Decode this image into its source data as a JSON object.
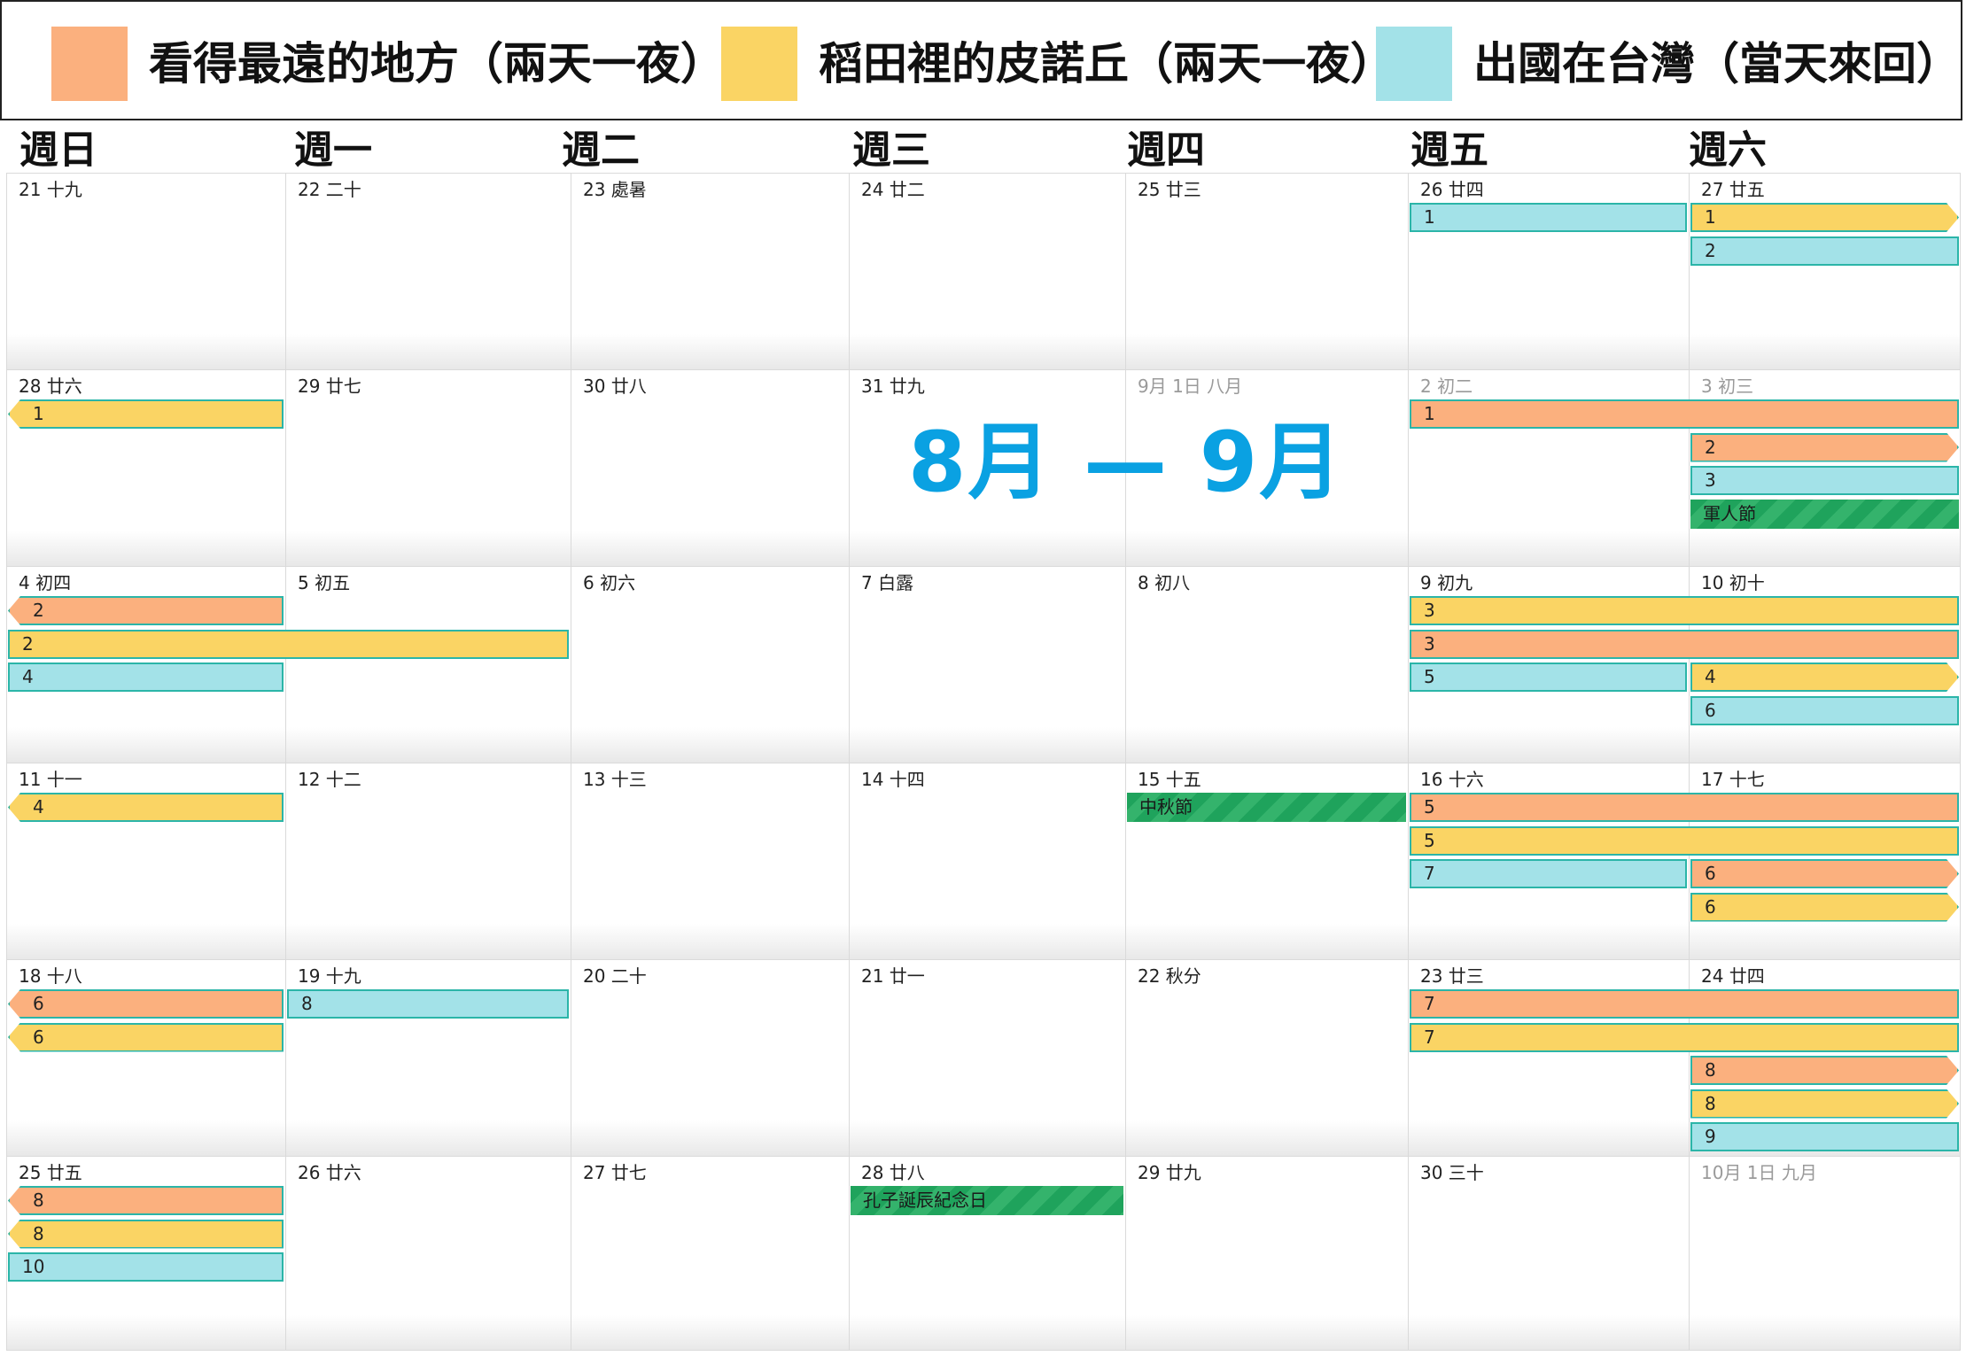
{
  "colors": {
    "orange": "#fbb07e",
    "yellow": "#fad464",
    "cyan": "#a3e2e8",
    "holiday": "#1fa35c",
    "title": "#0aa1e2"
  },
  "legend": [
    {
      "label": "看得最遠的地方（兩天一夜）",
      "color": "#fbb07e"
    },
    {
      "label": "稻田裡的皮諾丘（兩天一夜）",
      "color": "#fad464"
    },
    {
      "label": "出國在台灣（當天來回）",
      "color": "#a3e2e8"
    }
  ],
  "weekdays": [
    "週日",
    "週一",
    "週二",
    "週三",
    "週四",
    "週五",
    "週六"
  ],
  "month_title": "8月 — 9月",
  "days": [
    [
      "21 十九",
      "22 二十",
      "23 處暑",
      "24 廿二",
      "25 廿三",
      "26 廿四",
      "27 廿五"
    ],
    [
      "28 廿六",
      "29 廿七",
      "30 廿八",
      "31 廿九",
      "9月 1日 八月",
      "2 初二",
      "3 初三"
    ],
    [
      "4 初四",
      "5 初五",
      "6 初六",
      "7 白露",
      "8 初八",
      "9 初九",
      "10 初十"
    ],
    [
      "11 十一",
      "12 十二",
      "13 十三",
      "14 十四",
      "15 十五",
      "16 十六",
      "17 十七"
    ],
    [
      "18 十八",
      "19 十九",
      "20 二十",
      "21 廿一",
      "22 秋分",
      "23 廿三",
      "24 廿四"
    ],
    [
      "25 廿五",
      "26 廿六",
      "27 廿七",
      "28 廿八",
      "29 廿九",
      "30 三十",
      "10月 1日 九月"
    ]
  ],
  "dim_days": [
    [
      1,
      4
    ],
    [
      1,
      5
    ],
    [
      1,
      6
    ],
    [
      5,
      6
    ]
  ],
  "events": [
    {
      "week": 0,
      "start": 5,
      "end": 5,
      "slot": 0,
      "color": "cyan",
      "label": "1"
    },
    {
      "week": 0,
      "start": 6,
      "end": 6,
      "slot": 0,
      "color": "yellow",
      "label": "1",
      "cont_right": true
    },
    {
      "week": 0,
      "start": 6,
      "end": 6,
      "slot": 1,
      "color": "cyan",
      "label": "2"
    },
    {
      "week": 1,
      "start": 0,
      "end": 0,
      "slot": 0,
      "color": "yellow",
      "label": "1",
      "cont_left": true
    },
    {
      "week": 1,
      "start": 5,
      "end": 6,
      "slot": 0,
      "color": "orange",
      "label": "1"
    },
    {
      "week": 1,
      "start": 6,
      "end": 6,
      "slot": 1,
      "color": "orange",
      "label": "2",
      "cont_right": true
    },
    {
      "week": 1,
      "start": 6,
      "end": 6,
      "slot": 2,
      "color": "cyan",
      "label": "3"
    },
    {
      "week": 1,
      "start": 6,
      "end": 6,
      "slot": 3,
      "color": "holiday",
      "label": "軍人節"
    },
    {
      "week": 2,
      "start": 0,
      "end": 0,
      "slot": 0,
      "color": "orange",
      "label": "2",
      "cont_left": true
    },
    {
      "week": 2,
      "start": 0,
      "end": 1,
      "slot": 1,
      "color": "yellow",
      "label": "2"
    },
    {
      "week": 2,
      "start": 0,
      "end": 0,
      "slot": 2,
      "color": "cyan",
      "label": "4"
    },
    {
      "week": 2,
      "start": 5,
      "end": 6,
      "slot": 0,
      "color": "yellow",
      "label": "3"
    },
    {
      "week": 2,
      "start": 5,
      "end": 6,
      "slot": 1,
      "color": "orange",
      "label": "3"
    },
    {
      "week": 2,
      "start": 5,
      "end": 5,
      "slot": 2,
      "color": "cyan",
      "label": "5"
    },
    {
      "week": 2,
      "start": 6,
      "end": 6,
      "slot": 2,
      "color": "yellow",
      "label": "4",
      "cont_right": true
    },
    {
      "week": 2,
      "start": 6,
      "end": 6,
      "slot": 3,
      "color": "cyan",
      "label": "6"
    },
    {
      "week": 3,
      "start": 0,
      "end": 0,
      "slot": 0,
      "color": "yellow",
      "label": "4",
      "cont_left": true
    },
    {
      "week": 3,
      "start": 4,
      "end": 4,
      "slot": 0,
      "color": "holiday",
      "label": "中秋節"
    },
    {
      "week": 3,
      "start": 5,
      "end": 6,
      "slot": 0,
      "color": "orange",
      "label": "5"
    },
    {
      "week": 3,
      "start": 5,
      "end": 6,
      "slot": 1,
      "color": "yellow",
      "label": "5"
    },
    {
      "week": 3,
      "start": 5,
      "end": 5,
      "slot": 2,
      "color": "cyan",
      "label": "7"
    },
    {
      "week": 3,
      "start": 6,
      "end": 6,
      "slot": 2,
      "color": "orange",
      "label": "6",
      "cont_right": true
    },
    {
      "week": 3,
      "start": 6,
      "end": 6,
      "slot": 3,
      "color": "yellow",
      "label": "6",
      "cont_right": true
    },
    {
      "week": 4,
      "start": 0,
      "end": 0,
      "slot": 0,
      "color": "orange",
      "label": "6",
      "cont_left": true
    },
    {
      "week": 4,
      "start": 0,
      "end": 0,
      "slot": 1,
      "color": "yellow",
      "label": "6",
      "cont_left": true
    },
    {
      "week": 4,
      "start": 1,
      "end": 1,
      "slot": 0,
      "color": "cyan",
      "label": "8"
    },
    {
      "week": 4,
      "start": 5,
      "end": 6,
      "slot": 0,
      "color": "orange",
      "label": "7"
    },
    {
      "week": 4,
      "start": 5,
      "end": 6,
      "slot": 1,
      "color": "yellow",
      "label": "7"
    },
    {
      "week": 4,
      "start": 6,
      "end": 6,
      "slot": 2,
      "color": "orange",
      "label": "8",
      "cont_right": true
    },
    {
      "week": 4,
      "start": 6,
      "end": 6,
      "slot": 3,
      "color": "yellow",
      "label": "8",
      "cont_right": true
    },
    {
      "week": 4,
      "start": 6,
      "end": 6,
      "slot": 4,
      "color": "cyan",
      "label": "9"
    },
    {
      "week": 5,
      "start": 0,
      "end": 0,
      "slot": 0,
      "color": "orange",
      "label": "8",
      "cont_left": true
    },
    {
      "week": 5,
      "start": 0,
      "end": 0,
      "slot": 1,
      "color": "yellow",
      "label": "8",
      "cont_left": true
    },
    {
      "week": 5,
      "start": 0,
      "end": 0,
      "slot": 2,
      "color": "cyan",
      "label": "10"
    },
    {
      "week": 5,
      "start": 3,
      "end": 3,
      "slot": 0,
      "color": "holiday",
      "label": "孔子誕辰紀念日"
    }
  ]
}
